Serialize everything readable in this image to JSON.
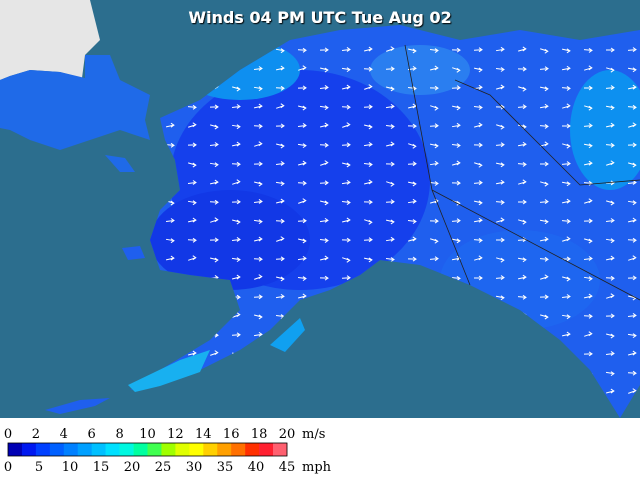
{
  "title": "Winds 04 PM UTC Tue Aug 02",
  "legend": {
    "colors": [
      "#0000b4",
      "#0018f0",
      "#0040ff",
      "#0060ff",
      "#0080ff",
      "#00a0ff",
      "#00c0ff",
      "#00e0ff",
      "#00f8e0",
      "#00ffa0",
      "#40ff50",
      "#a0ff00",
      "#e0ff00",
      "#ffff00",
      "#ffd000",
      "#ffa000",
      "#ff7000",
      "#ff3000",
      "#ff2030",
      "#ff6070"
    ],
    "ms_ticks": [
      0,
      2,
      4,
      6,
      8,
      10,
      12,
      14,
      16,
      18,
      20
    ],
    "ms_unit": "m/s",
    "mph_ticks": [
      0,
      5,
      10,
      15,
      20,
      25,
      30,
      35,
      40,
      45
    ],
    "mph_unit": "mph"
  }
}
